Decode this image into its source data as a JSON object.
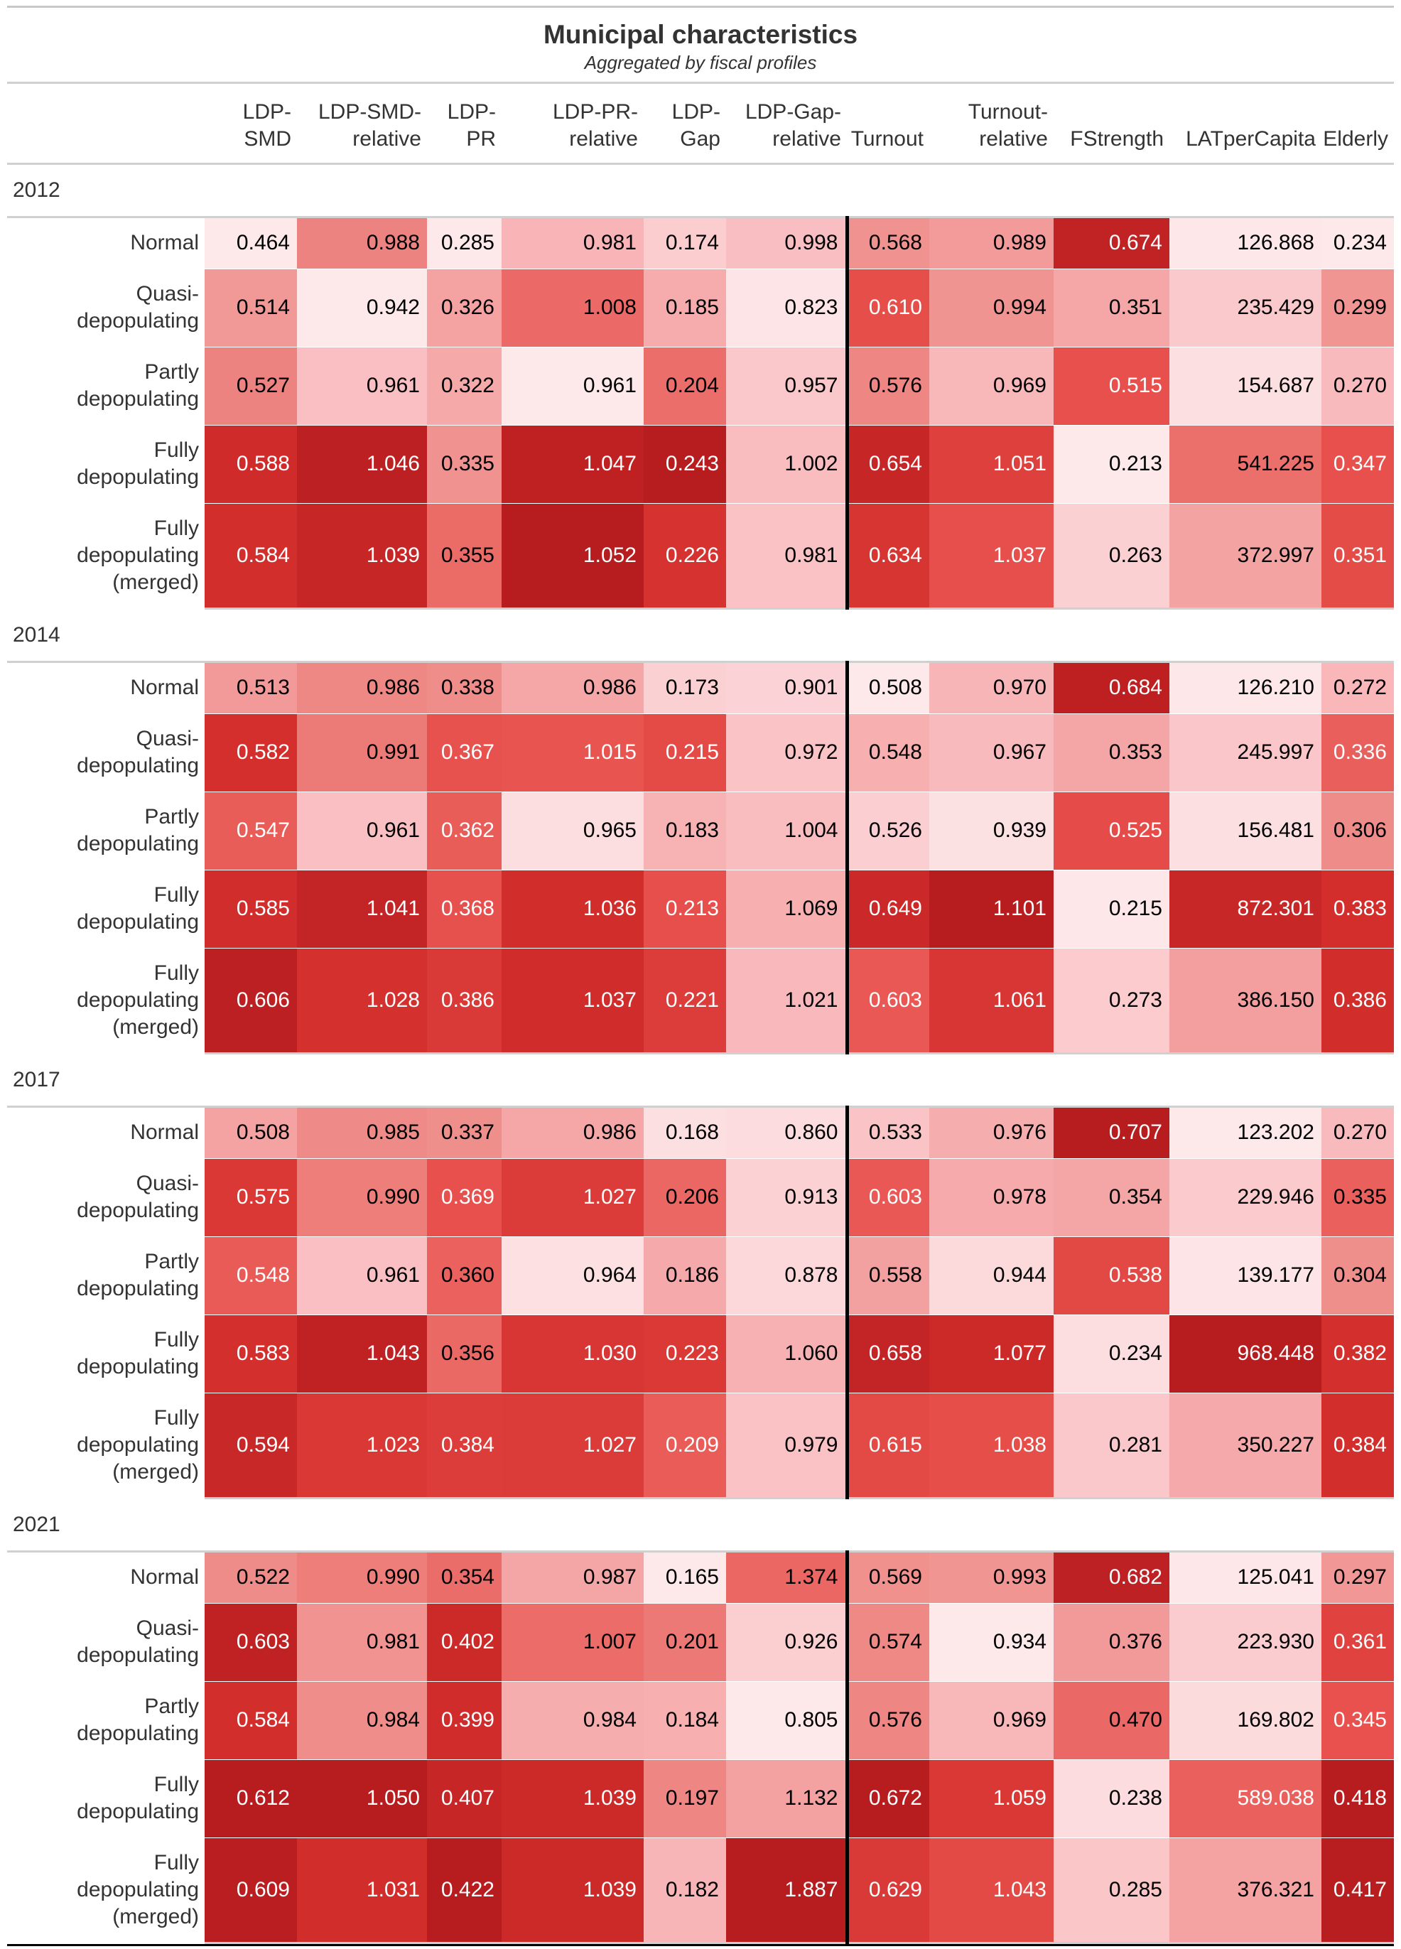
{
  "title": "Municipal characteristics",
  "subtitle": "Aggregated by fiscal profiles",
  "columns": [
    "LDP-\nSMD",
    "LDP-SMD-\nrelative",
    "LDP-\nPR",
    "LDP-PR-\nrelative",
    "LDP-\nGap",
    "LDP-Gap-\nrelative",
    "Turnout",
    "Turnout-\nrelative",
    "FStrength",
    "LATperCapita",
    "Elderly"
  ],
  "chart_data": {
    "type": "table",
    "title": "Municipal characteristics",
    "subtitle": "Aggregated by fiscal profiles",
    "columns": [
      "LDP-SMD",
      "LDP-SMD-relative",
      "LDP-PR",
      "LDP-PR-relative",
      "LDP-Gap",
      "LDP-Gap-relative",
      "Turnout",
      "Turnout-relative",
      "FStrength",
      "LATperCapita",
      "Elderly"
    ],
    "color_scale": [
      "#fde8ea",
      "#f9b9bc",
      "#ee8a87",
      "#e8524e",
      "#d42f2d",
      "#b71c1f"
    ],
    "groups": [
      {
        "label": "2012",
        "rows": [
          {
            "label": "Normal",
            "values": [
              "0.464",
              "0.988",
              "0.285",
              "0.981",
              "0.174",
              "0.998",
              "0.568",
              "0.989",
              "0.674",
              "126.868",
              "0.234"
            ]
          },
          {
            "label": "Quasi-\ndepopulating",
            "values": [
              "0.514",
              "0.942",
              "0.326",
              "1.008",
              "0.185",
              "0.823",
              "0.610",
              "0.994",
              "0.351",
              "235.429",
              "0.299"
            ]
          },
          {
            "label": "Partly\ndepopulating",
            "values": [
              "0.527",
              "0.961",
              "0.322",
              "0.961",
              "0.204",
              "0.957",
              "0.576",
              "0.969",
              "0.515",
              "154.687",
              "0.270"
            ]
          },
          {
            "label": "Fully\ndepopulating",
            "values": [
              "0.588",
              "1.046",
              "0.335",
              "1.047",
              "0.243",
              "1.002",
              "0.654",
              "1.051",
              "0.213",
              "541.225",
              "0.347"
            ]
          },
          {
            "label": "Fully\ndepopulating\n(merged)",
            "values": [
              "0.584",
              "1.039",
              "0.355",
              "1.052",
              "0.226",
              "0.981",
              "0.634",
              "1.037",
              "0.263",
              "372.997",
              "0.351"
            ]
          }
        ]
      },
      {
        "label": "2014",
        "rows": [
          {
            "label": "Normal",
            "values": [
              "0.513",
              "0.986",
              "0.338",
              "0.986",
              "0.173",
              "0.901",
              "0.508",
              "0.970",
              "0.684",
              "126.210",
              "0.272"
            ]
          },
          {
            "label": "Quasi-\ndepopulating",
            "values": [
              "0.582",
              "0.991",
              "0.367",
              "1.015",
              "0.215",
              "0.972",
              "0.548",
              "0.967",
              "0.353",
              "245.997",
              "0.336"
            ]
          },
          {
            "label": "Partly\ndepopulating",
            "values": [
              "0.547",
              "0.961",
              "0.362",
              "0.965",
              "0.183",
              "1.004",
              "0.526",
              "0.939",
              "0.525",
              "156.481",
              "0.306"
            ]
          },
          {
            "label": "Fully\ndepopulating",
            "values": [
              "0.585",
              "1.041",
              "0.368",
              "1.036",
              "0.213",
              "1.069",
              "0.649",
              "1.101",
              "0.215",
              "872.301",
              "0.383"
            ]
          },
          {
            "label": "Fully\ndepopulating\n(merged)",
            "values": [
              "0.606",
              "1.028",
              "0.386",
              "1.037",
              "0.221",
              "1.021",
              "0.603",
              "1.061",
              "0.273",
              "386.150",
              "0.386"
            ]
          }
        ]
      },
      {
        "label": "2017",
        "rows": [
          {
            "label": "Normal",
            "values": [
              "0.508",
              "0.985",
              "0.337",
              "0.986",
              "0.168",
              "0.860",
              "0.533",
              "0.976",
              "0.707",
              "123.202",
              "0.270"
            ]
          },
          {
            "label": "Quasi-\ndepopulating",
            "values": [
              "0.575",
              "0.990",
              "0.369",
              "1.027",
              "0.206",
              "0.913",
              "0.603",
              "0.978",
              "0.354",
              "229.946",
              "0.335"
            ]
          },
          {
            "label": "Partly\ndepopulating",
            "values": [
              "0.548",
              "0.961",
              "0.360",
              "0.964",
              "0.186",
              "0.878",
              "0.558",
              "0.944",
              "0.538",
              "139.177",
              "0.304"
            ]
          },
          {
            "label": "Fully\ndepopulating",
            "values": [
              "0.583",
              "1.043",
              "0.356",
              "1.030",
              "0.223",
              "1.060",
              "0.658",
              "1.077",
              "0.234",
              "968.448",
              "0.382"
            ]
          },
          {
            "label": "Fully\ndepopulating\n(merged)",
            "values": [
              "0.594",
              "1.023",
              "0.384",
              "1.027",
              "0.209",
              "0.979",
              "0.615",
              "1.038",
              "0.281",
              "350.227",
              "0.384"
            ]
          }
        ]
      },
      {
        "label": "2021",
        "rows": [
          {
            "label": "Normal",
            "values": [
              "0.522",
              "0.990",
              "0.354",
              "0.987",
              "0.165",
              "1.374",
              "0.569",
              "0.993",
              "0.682",
              "125.041",
              "0.297"
            ]
          },
          {
            "label": "Quasi-\ndepopulating",
            "values": [
              "0.603",
              "0.981",
              "0.402",
              "1.007",
              "0.201",
              "0.926",
              "0.574",
              "0.934",
              "0.376",
              "223.930",
              "0.361"
            ]
          },
          {
            "label": "Partly\ndepopulating",
            "values": [
              "0.584",
              "0.984",
              "0.399",
              "0.984",
              "0.184",
              "0.805",
              "0.576",
              "0.969",
              "0.470",
              "169.802",
              "0.345"
            ]
          },
          {
            "label": "Fully\ndepopulating",
            "values": [
              "0.612",
              "1.050",
              "0.407",
              "1.039",
              "0.197",
              "1.132",
              "0.672",
              "1.059",
              "0.238",
              "589.038",
              "0.418"
            ]
          },
          {
            "label": "Fully\ndepopulating\n(merged)",
            "values": [
              "0.609",
              "1.031",
              "0.422",
              "1.039",
              "0.182",
              "1.887",
              "0.629",
              "1.043",
              "0.285",
              "376.321",
              "0.417"
            ]
          }
        ]
      }
    ]
  }
}
